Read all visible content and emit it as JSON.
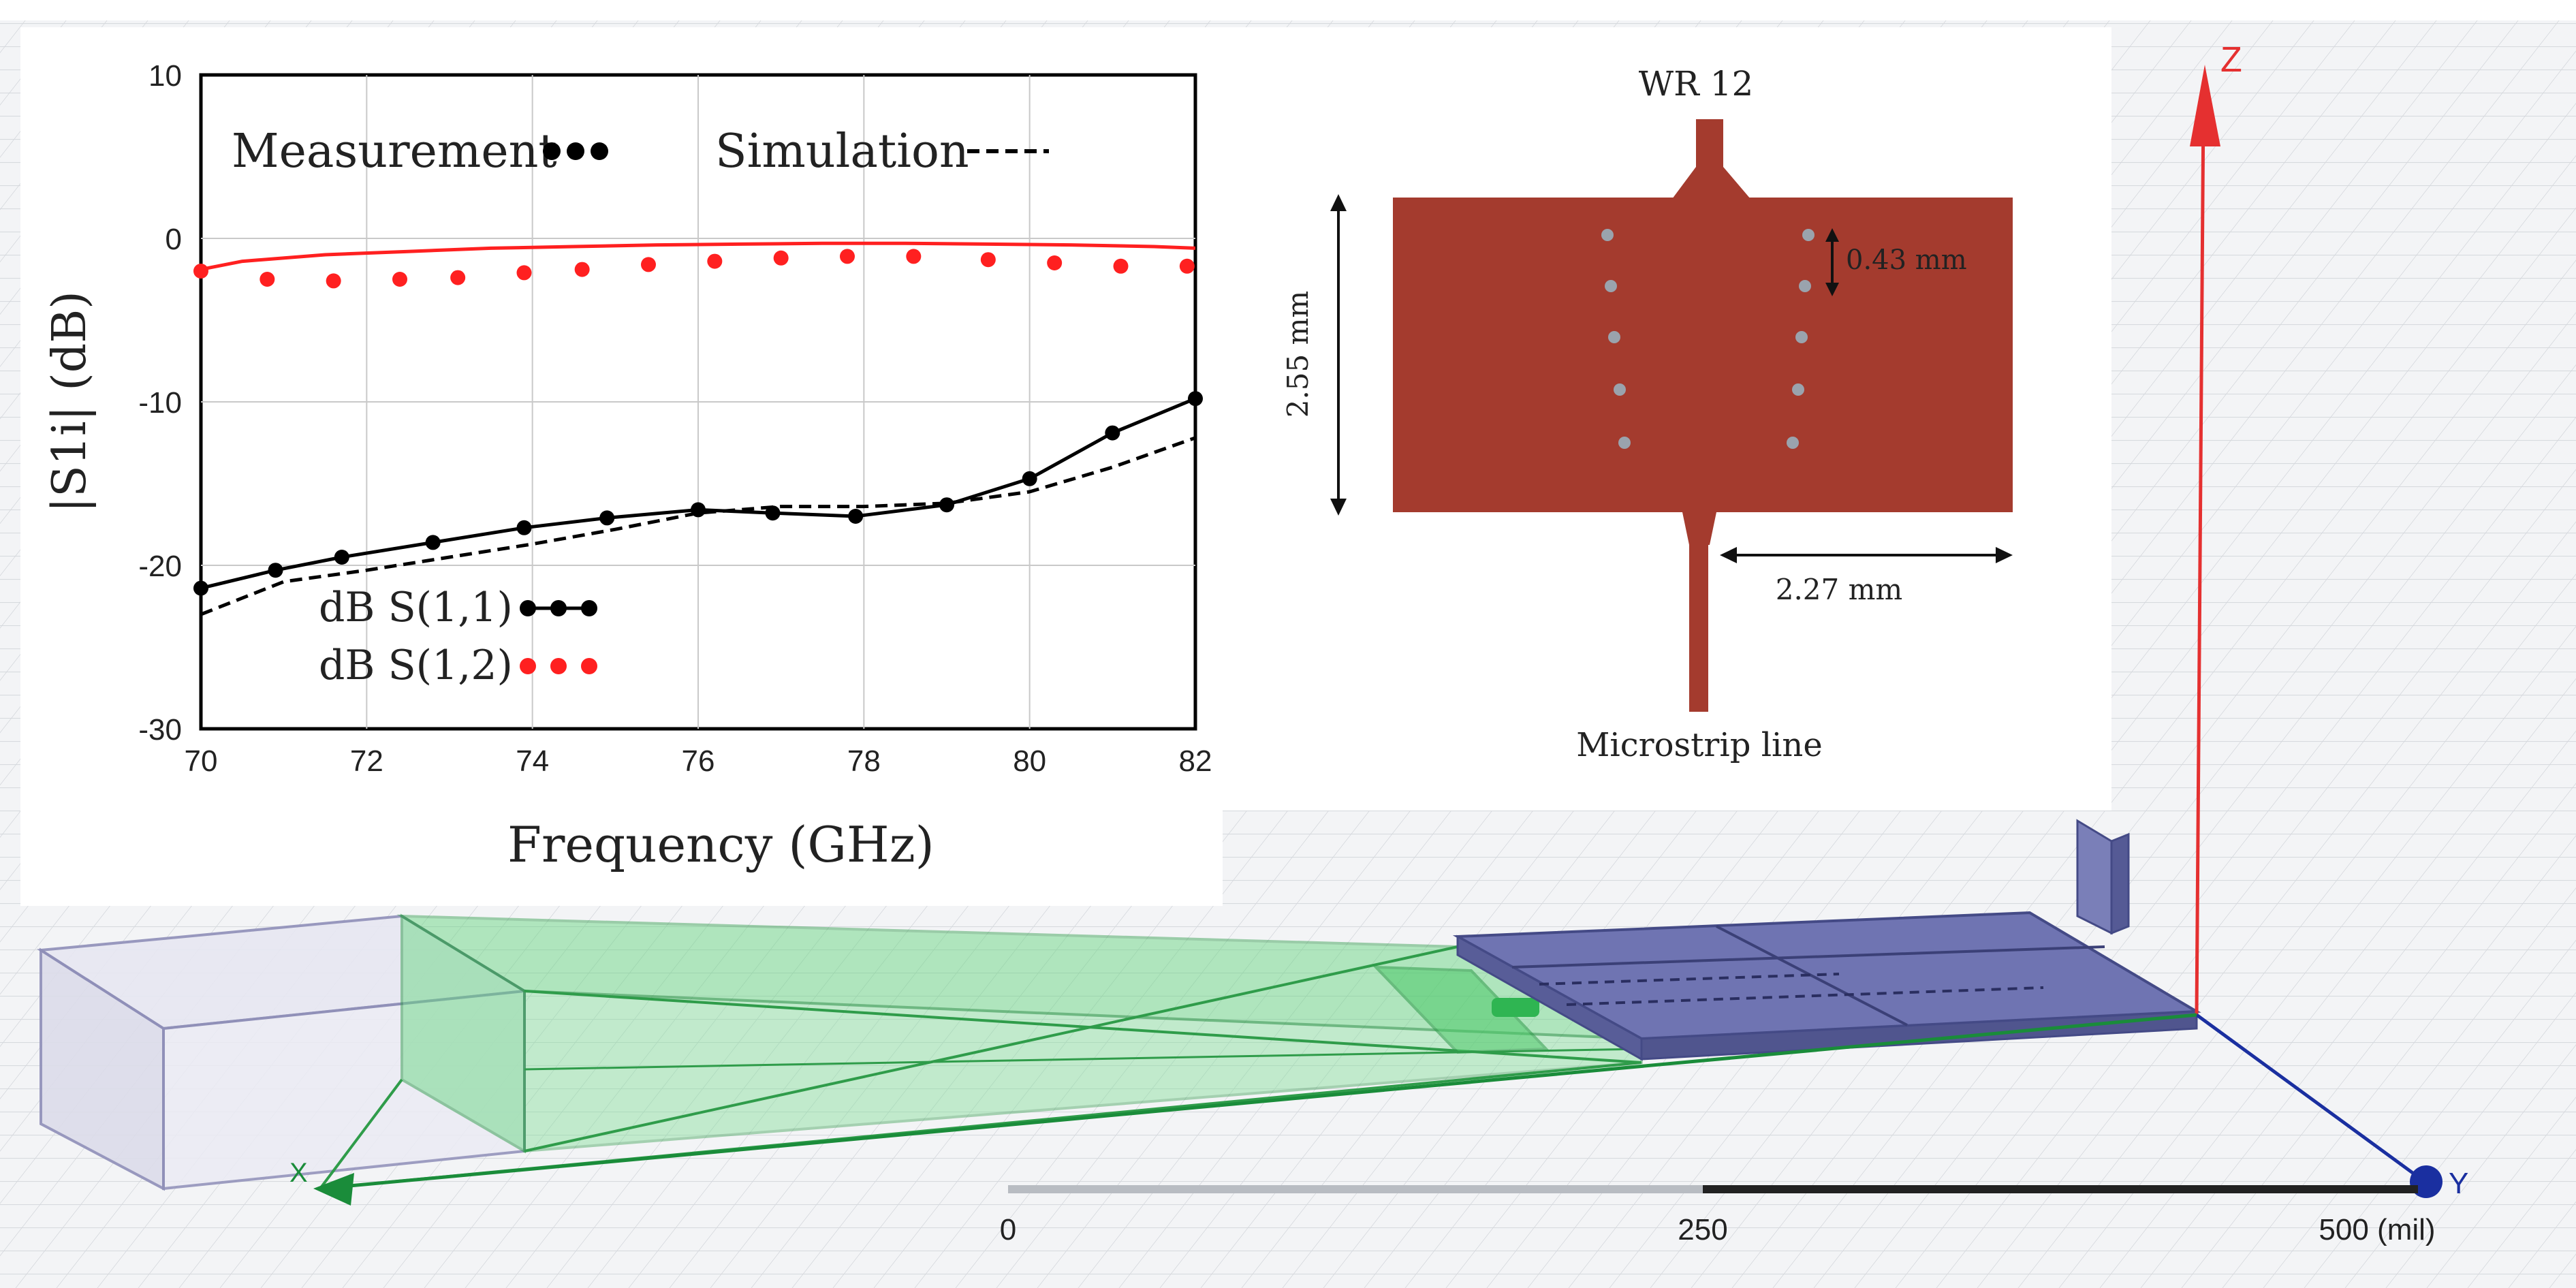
{
  "colors": {
    "measurement_s12": "#ff2020",
    "measurement_s11": "#000000",
    "patch": "#a43b2e",
    "via": "#9aa3ad",
    "waveguide": "#41c65f",
    "board": "#646aa8",
    "z_axis": "#e53030",
    "y_axis": "#1a2fa0",
    "x_axis": "#1a8c3a"
  },
  "chart_data": {
    "type": "line",
    "xlabel": "Frequency (GHz)",
    "ylabel": "|S1i| (dB)",
    "xlim": [
      70,
      82
    ],
    "ylim": [
      -30,
      10
    ],
    "xticks": [
      "70",
      "72",
      "74",
      "76",
      "78",
      "80",
      "82"
    ],
    "yticks": [
      "10",
      "0",
      "-10",
      "-20",
      "-30"
    ],
    "grid": true,
    "legend_top": {
      "measurement": "Measurement",
      "simulation": "Simulation"
    },
    "legend_bottom": {
      "s11": "dB S(1,1)",
      "s12": "dB S(1,2)"
    },
    "series": [
      {
        "name": "dB S(1,1) measurement",
        "style": "solid-markers",
        "x": [
          70,
          70.9,
          71.7,
          72.8,
          73.9,
          74.9,
          76.0,
          76.9,
          77.9,
          79.0,
          80.0,
          81.0,
          82.0
        ],
        "y": [
          -21.4,
          -20.3,
          -19.5,
          -18.6,
          -17.7,
          -17.1,
          -16.6,
          -16.8,
          -17.0,
          -16.3,
          -14.7,
          -11.9,
          -9.8
        ]
      },
      {
        "name": "S(1,1) simulation",
        "style": "dashed",
        "x": [
          70,
          71,
          72,
          73,
          74,
          75,
          76,
          77,
          78,
          79,
          80,
          81,
          82
        ],
        "y": [
          -23.0,
          -21.0,
          -20.3,
          -19.5,
          -18.7,
          -17.8,
          -16.8,
          -16.4,
          -16.4,
          -16.2,
          -15.5,
          -14.0,
          -12.2
        ]
      },
      {
        "name": "dB S(1,2) measurement",
        "style": "markers",
        "x": [
          70,
          70.8,
          71.6,
          72.4,
          73.1,
          73.9,
          74.6,
          75.4,
          76.2,
          77.0,
          77.8,
          78.6,
          79.5,
          80.3,
          81.1,
          81.9
        ],
        "y": [
          -2.0,
          -2.5,
          -2.6,
          -2.5,
          -2.4,
          -2.1,
          -1.9,
          -1.6,
          -1.4,
          -1.2,
          -1.1,
          -1.1,
          -1.3,
          -1.5,
          -1.7,
          -1.7
        ]
      },
      {
        "name": "S(1,2) simulation",
        "style": "solid",
        "x": [
          70,
          70.5,
          71.5,
          72.5,
          73.5,
          74.5,
          75.5,
          76.5,
          77.5,
          78.5,
          79.5,
          80.5,
          81.5,
          82.0
        ],
        "y": [
          -1.9,
          -1.4,
          -1.0,
          -0.8,
          -0.6,
          -0.5,
          -0.4,
          -0.35,
          -0.3,
          -0.3,
          -0.35,
          -0.4,
          -0.5,
          -0.6
        ]
      }
    ]
  },
  "antenna_inset": {
    "top_label": "WR 12",
    "height_dim": "2.55 mm",
    "via_spacing_dim": "0.43 mm",
    "width_dim": "2.27 mm",
    "bottom_label": "Microstrip line"
  },
  "scene3d": {
    "axis_z": "Z",
    "axis_y": "Y",
    "axis_x": "X",
    "scale_ticks": [
      "0",
      "250",
      "500 (mil)"
    ]
  }
}
